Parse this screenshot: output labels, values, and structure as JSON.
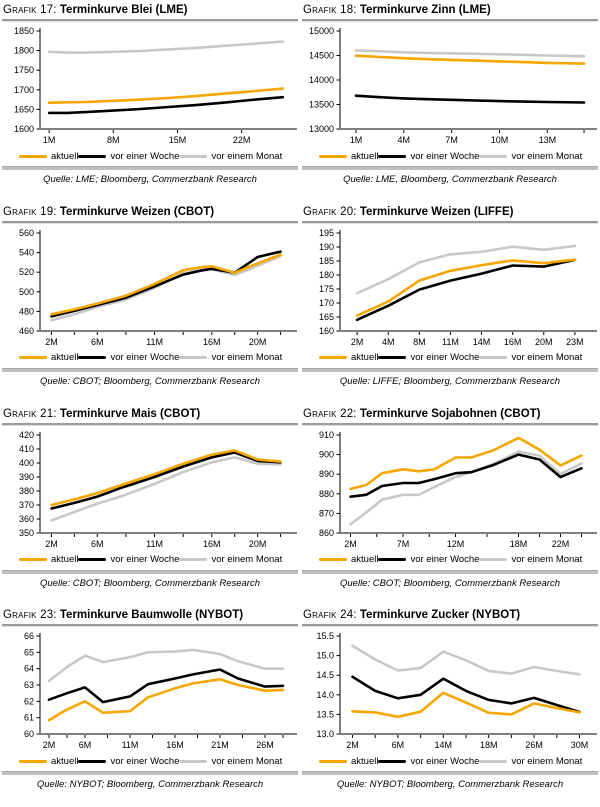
{
  "legend": {
    "aktuell": "aktuell",
    "woche": "vor einer Woche",
    "monat": "vor einem Monat"
  },
  "colors": {
    "aktuell": "#F7A600",
    "woche": "#000000",
    "monat": "#C8C8C8",
    "axis": "#000000",
    "xaxis": "#7f7f7f"
  },
  "chart_data": [
    {
      "type": "line",
      "grafik_label": "Grafik 17:",
      "title": "Terminkurve Blei (LME)",
      "source": "Quelle: LME; Bloomberg, Commerzbank Research",
      "legend_position": "bottom",
      "xlim": [
        0,
        27.5
      ],
      "ylim": [
        1600,
        1850
      ],
      "x": [
        1,
        3,
        5,
        8,
        11,
        14,
        17,
        20,
        23,
        26.5
      ],
      "xticks": [
        {
          "m": 1,
          "label": "1M"
        },
        {
          "m": 8,
          "label": "8M"
        },
        {
          "m": 15,
          "label": "15M"
        },
        {
          "m": 22,
          "label": "22M"
        }
      ],
      "xminor": [],
      "yticks": [
        {
          "v": 1600,
          "label": "1600"
        },
        {
          "v": 1650,
          "label": "1650"
        },
        {
          "v": 1700,
          "label": "1700"
        },
        {
          "v": 1750,
          "label": "1750"
        },
        {
          "v": 1800,
          "label": "1800"
        },
        {
          "v": 1850,
          "label": "1850"
        }
      ],
      "series": [
        {
          "key": "aktuell",
          "name": "aktuell",
          "values": [
            1667,
            1668,
            1669,
            1672,
            1675,
            1679,
            1684,
            1690,
            1696,
            1703
          ]
        },
        {
          "key": "woche",
          "name": "vor einer Woche",
          "values": [
            1641,
            1641,
            1643,
            1647,
            1651,
            1656,
            1661,
            1667,
            1674,
            1681
          ]
        },
        {
          "key": "monat",
          "name": "vor einem Monat",
          "values": [
            1797,
            1795,
            1795,
            1797,
            1799,
            1803,
            1807,
            1812,
            1817,
            1823
          ]
        }
      ]
    },
    {
      "type": "line",
      "grafik_label": "Grafik 18:",
      "title": "Terminkurve Zinn (LME)",
      "source": "Quelle: LME, Bloomberg, Commerzbank Research",
      "legend_position": "bottom",
      "xlim": [
        0,
        15.8
      ],
      "ylim": [
        13000,
        15000
      ],
      "x": [
        1,
        2.5,
        4,
        5.5,
        7,
        8.5,
        10,
        11.5,
        13,
        15.3
      ],
      "xticks": [
        {
          "m": 1,
          "label": "1M"
        },
        {
          "m": 4,
          "label": "4M"
        },
        {
          "m": 7,
          "label": "7M"
        },
        {
          "m": 10,
          "label": "10M"
        },
        {
          "m": 13,
          "label": "13M"
        }
      ],
      "xminor": [
        15.3
      ],
      "yticks": [
        {
          "v": 13000,
          "label": "13000"
        },
        {
          "v": 13500,
          "label": "13500"
        },
        {
          "v": 14000,
          "label": "14000"
        },
        {
          "v": 14500,
          "label": "14500"
        },
        {
          "v": 15000,
          "label": "15000"
        }
      ],
      "series": [
        {
          "key": "aktuell",
          "name": "aktuell",
          "values": [
            14495,
            14470,
            14445,
            14425,
            14410,
            14395,
            14380,
            14365,
            14350,
            14335
          ]
        },
        {
          "key": "woche",
          "name": "vor einer Woche",
          "values": [
            13680,
            13650,
            13625,
            13608,
            13595,
            13582,
            13570,
            13560,
            13550,
            13540
          ]
        },
        {
          "key": "monat",
          "name": "vor einem Monat",
          "values": [
            14605,
            14585,
            14565,
            14552,
            14545,
            14535,
            14525,
            14515,
            14500,
            14485
          ]
        }
      ]
    },
    {
      "type": "line",
      "grafik_label": "Grafik 19:",
      "title": "Terminkurve Weizen (CBOT)",
      "source": "Quelle: CBOT; Bloomberg, Commerzbank Research",
      "legend_position": "bottom",
      "xlim": [
        1,
        23
      ],
      "ylim": [
        460,
        560
      ],
      "x": [
        2,
        4,
        6,
        8.5,
        11,
        13.5,
        15,
        16,
        18,
        20,
        22
      ],
      "xticks": [
        {
          "m": 2,
          "label": "2M"
        },
        {
          "m": 6,
          "label": "6M"
        },
        {
          "m": 11,
          "label": "11M"
        },
        {
          "m": 16,
          "label": "16M"
        },
        {
          "m": 20,
          "label": "20M"
        }
      ],
      "xminor": [
        4,
        8.5,
        13.5,
        18,
        22
      ],
      "yticks": [
        {
          "v": 460,
          "label": "460"
        },
        {
          "v": 480,
          "label": "480"
        },
        {
          "v": 500,
          "label": "500"
        },
        {
          "v": 520,
          "label": "520"
        },
        {
          "v": 540,
          "label": "540"
        },
        {
          "v": 560,
          "label": "560"
        }
      ],
      "series": [
        {
          "key": "aktuell",
          "name": "aktuell",
          "values": [
            477,
            482,
            488,
            496,
            508,
            522,
            525,
            526,
            519.5,
            529,
            538
          ]
        },
        {
          "key": "woche",
          "name": "vor einer Woche",
          "values": [
            475,
            480.5,
            486.5,
            494,
            505.5,
            517.5,
            521.5,
            523.5,
            519.5,
            535.5,
            541
          ]
        },
        {
          "key": "monat",
          "name": "vor einem Monat",
          "values": [
            471,
            477,
            484.5,
            492,
            504,
            519,
            522,
            523,
            517,
            526.5,
            536.5
          ]
        }
      ]
    },
    {
      "type": "line",
      "grafik_label": "Grafik 20:",
      "title": "Terminkurve Weizen (LIFFE)",
      "source": "Quelle: LIFFE; Bloomberg, Commerzbank Research",
      "legend_position": "bottom",
      "xlim": [
        -0.55,
        7.55
      ],
      "ylim": [
        160,
        195
      ],
      "x": [
        0,
        1,
        2,
        3,
        4,
        5,
        6,
        7
      ],
      "xticks": [
        {
          "m": 0,
          "label": "2M"
        },
        {
          "m": 1,
          "label": "4M"
        },
        {
          "m": 2,
          "label": "8M"
        },
        {
          "m": 3,
          "label": "11M"
        },
        {
          "m": 4,
          "label": "14M"
        },
        {
          "m": 5,
          "label": "16M"
        },
        {
          "m": 6,
          "label": "20M"
        },
        {
          "m": 7,
          "label": "23M"
        }
      ],
      "xminor": [],
      "yticks": [
        {
          "v": 160,
          "label": "160"
        },
        {
          "v": 165,
          "label": "165"
        },
        {
          "v": 170,
          "label": "170"
        },
        {
          "v": 175,
          "label": "175"
        },
        {
          "v": 180,
          "label": "180"
        },
        {
          "v": 185,
          "label": "185"
        },
        {
          "v": 190,
          "label": "190"
        },
        {
          "v": 195,
          "label": "195"
        }
      ],
      "series": [
        {
          "key": "aktuell",
          "name": "aktuell",
          "values": [
            165.5,
            170.5,
            178,
            181.5,
            183.5,
            185.2,
            184.2,
            185.5
          ]
        },
        {
          "key": "woche",
          "name": "vor einer Woche",
          "values": [
            164,
            169,
            174.8,
            178,
            180.5,
            183.4,
            183,
            185.4
          ]
        },
        {
          "key": "monat",
          "name": "vor einem Monat",
          "values": [
            173.5,
            178.5,
            184.5,
            187.4,
            188.3,
            190.1,
            189,
            190.4
          ]
        }
      ]
    },
    {
      "type": "line",
      "grafik_label": "Grafik 21:",
      "title": "Terminkurve Mais (CBOT)",
      "source": "Quelle: CBOT; Bloomberg, Commerzbank Research",
      "legend_position": "bottom",
      "xlim": [
        1,
        23
      ],
      "ylim": [
        350,
        420
      ],
      "x": [
        2,
        4,
        6,
        8,
        11,
        13.5,
        16,
        18,
        20,
        22
      ],
      "xticks": [
        {
          "m": 2,
          "label": "2M"
        },
        {
          "m": 6,
          "label": "6M"
        },
        {
          "m": 11,
          "label": "11M"
        },
        {
          "m": 16,
          "label": "16M"
        },
        {
          "m": 20,
          "label": "20M"
        }
      ],
      "xminor": [
        4,
        8.5,
        13.5,
        18,
        22
      ],
      "yticks": [
        {
          "v": 350,
          "label": "350"
        },
        {
          "v": 360,
          "label": "360"
        },
        {
          "v": 370,
          "label": "370"
        },
        {
          "v": 380,
          "label": "380"
        },
        {
          "v": 390,
          "label": "390"
        },
        {
          "v": 400,
          "label": "400"
        },
        {
          "v": 410,
          "label": "410"
        },
        {
          "v": 420,
          "label": "420"
        }
      ],
      "series": [
        {
          "key": "aktuell",
          "name": "aktuell",
          "values": [
            370,
            374,
            378.5,
            384,
            392,
            399.5,
            406,
            409,
            402.5,
            401
          ]
        },
        {
          "key": "woche",
          "name": "vor einer Woche",
          "values": [
            367.5,
            371.5,
            376,
            382,
            390,
            397.5,
            404,
            407.5,
            401.5,
            400.5
          ]
        },
        {
          "key": "monat",
          "name": "vor einem Monat",
          "values": [
            359,
            365,
            371,
            376,
            385,
            393.5,
            400.5,
            404,
            399.5,
            399
          ]
        }
      ]
    },
    {
      "type": "line",
      "grafik_label": "Grafik 22:",
      "title": "Terminkurve Sojabohnen (CBOT)",
      "source": "Quelle: CBOT; Bloomberg, Commerzbank Research",
      "legend_position": "bottom",
      "xlim": [
        1,
        25
      ],
      "ylim": [
        860,
        910
      ],
      "x": [
        2,
        3.5,
        5,
        7,
        8.5,
        10,
        12,
        13.5,
        15.5,
        18,
        20,
        22,
        24
      ],
      "xticks": [
        {
          "m": 2,
          "label": "2M"
        },
        {
          "m": 7,
          "label": "7M"
        },
        {
          "m": 12,
          "label": "12M"
        },
        {
          "m": 18,
          "label": "18M"
        },
        {
          "m": 22,
          "label": "22M"
        }
      ],
      "xminor": [
        4.5,
        9.5,
        15,
        20,
        24
      ],
      "yticks": [
        {
          "v": 860,
          "label": "860"
        },
        {
          "v": 870,
          "label": "870"
        },
        {
          "v": 880,
          "label": "880"
        },
        {
          "v": 890,
          "label": "890"
        },
        {
          "v": 900,
          "label": "900"
        },
        {
          "v": 910,
          "label": "910"
        }
      ],
      "series": [
        {
          "key": "aktuell",
          "name": "aktuell",
          "values": [
            882.5,
            884.5,
            890.5,
            892.5,
            891.5,
            892.5,
            898.5,
            898.5,
            902,
            908.5,
            902.5,
            894.5,
            899.5
          ]
        },
        {
          "key": "woche",
          "name": "vor einer Woche",
          "values": [
            878.5,
            879.5,
            884,
            885.5,
            885.5,
            887.5,
            890.5,
            891,
            894.5,
            900,
            897.5,
            888.5,
            893
          ]
        },
        {
          "key": "monat",
          "name": "vor einem Monat",
          "values": [
            864.5,
            870.5,
            877,
            879.5,
            879.5,
            883.5,
            888.5,
            891,
            895,
            901.5,
            899.5,
            890,
            895.5
          ]
        }
      ]
    },
    {
      "type": "line",
      "grafik_label": "Grafik 23:",
      "title": "Terminkurve Baumwolle (NYBOT)",
      "source": "Quelle: NYBOT; Bloomberg, Commerzbank Research",
      "legend_position": "bottom",
      "xlim": [
        1,
        29
      ],
      "ylim": [
        60,
        66
      ],
      "x": [
        2,
        4,
        6,
        8,
        11,
        13,
        16,
        18,
        21,
        23,
        26,
        28
      ],
      "xticks": [
        {
          "m": 2,
          "label": "2M"
        },
        {
          "m": 6,
          "label": "6M"
        },
        {
          "m": 11,
          "label": "11M"
        },
        {
          "m": 16,
          "label": "16M"
        },
        {
          "m": 21,
          "label": "21M"
        },
        {
          "m": 26,
          "label": "26M"
        }
      ],
      "xminor": [
        4,
        8.5,
        13.5,
        18.5,
        23.5,
        28
      ],
      "yticks": [
        {
          "v": 60,
          "label": "60"
        },
        {
          "v": 61,
          "label": "61"
        },
        {
          "v": 62,
          "label": "62"
        },
        {
          "v": 63,
          "label": "63"
        },
        {
          "v": 64,
          "label": "64"
        },
        {
          "v": 65,
          "label": "65"
        },
        {
          "v": 66,
          "label": "66"
        }
      ],
      "series": [
        {
          "key": "aktuell",
          "name": "aktuell",
          "values": [
            60.85,
            61.5,
            62.0,
            61.3,
            61.4,
            62.25,
            62.8,
            63.1,
            63.35,
            63.0,
            62.65,
            62.7
          ]
        },
        {
          "key": "woche",
          "name": "vor einer Woche",
          "values": [
            62.1,
            62.5,
            62.85,
            61.95,
            62.3,
            63.05,
            63.4,
            63.65,
            63.95,
            63.4,
            62.9,
            62.95
          ]
        },
        {
          "key": "monat",
          "name": "vor einem Monat",
          "values": [
            63.25,
            64.1,
            64.8,
            64.4,
            64.7,
            65.0,
            65.05,
            65.15,
            64.9,
            64.45,
            64.0,
            64.0
          ]
        }
      ]
    },
    {
      "type": "line",
      "grafik_label": "Grafik 24:",
      "title": "Terminkurve Zucker (NYBOT)",
      "source": "Quelle: NYBOT; Bloomberg, Commerzbank Research",
      "legend_position": "bottom",
      "xlim": [
        -0.55,
        10.55
      ],
      "ylim": [
        13.0,
        15.5
      ],
      "x": [
        0,
        1,
        2,
        3,
        4,
        5,
        6,
        7,
        8,
        9,
        10
      ],
      "xticks": [
        {
          "m": 0,
          "label": "2M"
        },
        {
          "m": 2,
          "label": "6M"
        },
        {
          "m": 4,
          "label": "14M"
        },
        {
          "m": 6,
          "label": "18M"
        },
        {
          "m": 8,
          "label": "26M"
        },
        {
          "m": 10,
          "label": "30M"
        }
      ],
      "xminor": [
        1,
        3,
        5,
        7,
        9
      ],
      "yticks": [
        {
          "v": 13.0,
          "label": "13.0"
        },
        {
          "v": 13.5,
          "label": "13.5"
        },
        {
          "v": 14.0,
          "label": "14.0"
        },
        {
          "v": 14.5,
          "label": "14.5"
        },
        {
          "v": 15.0,
          "label": "15.0"
        },
        {
          "v": 15.5,
          "label": "15.5"
        }
      ],
      "series": [
        {
          "key": "aktuell",
          "name": "aktuell",
          "values": [
            13.58,
            13.55,
            13.44,
            13.57,
            14.05,
            13.8,
            13.54,
            13.5,
            13.78,
            13.66,
            13.55
          ]
        },
        {
          "key": "woche",
          "name": "vor einer Woche",
          "values": [
            14.46,
            14.1,
            13.91,
            14.0,
            14.41,
            14.1,
            13.87,
            13.78,
            13.92,
            13.74,
            13.56
          ]
        },
        {
          "key": "monat",
          "name": "vor einem Monat",
          "values": [
            15.25,
            14.9,
            14.62,
            14.68,
            15.1,
            14.88,
            14.61,
            14.54,
            14.71,
            14.61,
            14.52
          ]
        }
      ]
    }
  ]
}
